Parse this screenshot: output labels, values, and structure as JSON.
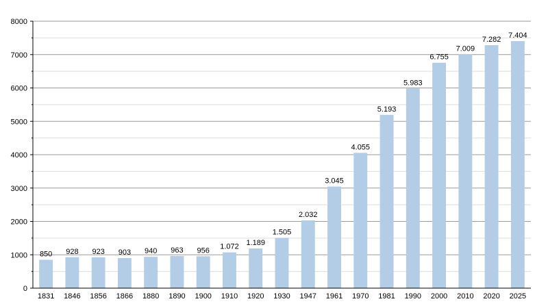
{
  "chart_data": {
    "type": "bar",
    "title": "",
    "xlabel": "",
    "ylabel": "",
    "ylim": [
      0,
      8000
    ],
    "yticks": [
      0,
      1000,
      2000,
      3000,
      4000,
      5000,
      6000,
      7000,
      8000
    ],
    "grid": true,
    "categories": [
      "1831",
      "1846",
      "1856",
      "1866",
      "1880",
      "1890",
      "1900",
      "1910",
      "1920",
      "1930",
      "1947",
      "1961",
      "1970",
      "1981",
      "1990",
      "2000",
      "2010",
      "2020",
      "2025"
    ],
    "values": [
      850,
      928,
      923,
      903,
      940,
      963,
      956,
      1072,
      1189,
      1505,
      2032,
      3045,
      4055,
      5193,
      5983,
      6755,
      7009,
      7282,
      7404
    ],
    "data_labels": [
      "850",
      "928",
      "923",
      "903",
      "940",
      "963",
      "956",
      "1.072",
      "1.189",
      "1.505",
      "2.032",
      "3.045",
      "4.055",
      "5.193",
      "5.983",
      "6.755",
      "7.009",
      "7.282",
      "7.404"
    ],
    "colors": {
      "bar": "#b3cde6",
      "grid_major": "#9a9a9a",
      "grid_minor": "#dddddd",
      "axis": "#000000"
    }
  }
}
